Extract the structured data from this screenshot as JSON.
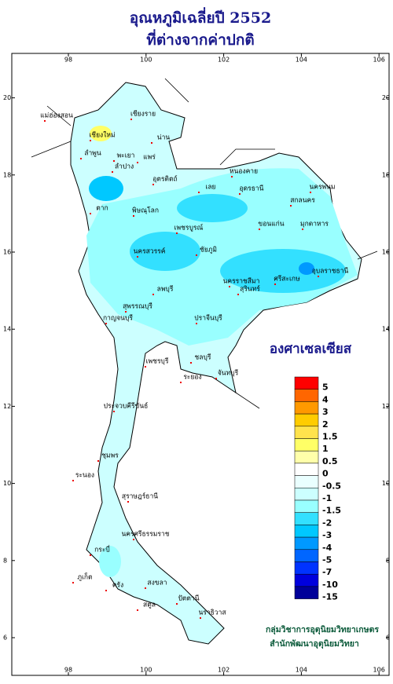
{
  "title": [
    "อุณหภูมิเฉลี่ยปี 2552",
    "ที่ต่างจากค่าปกติ"
  ],
  "map": {
    "lon_ticks": [
      98,
      100,
      102,
      104,
      106
    ],
    "lat_ticks": [
      6,
      8,
      10,
      12,
      14,
      16,
      18,
      20
    ],
    "places": [
      "เชียงราย",
      "แม่ฮ่องสอน",
      "เชียงใหม่",
      "พะเยา",
      "น่าน",
      "ลำพูน",
      "ลำปาง",
      "แพร่",
      "อุตรดิตถ์",
      "ตาก",
      "เลย",
      "หนองคาย",
      "อุดรธานี",
      "สกลนคร",
      "นครพนม",
      "มุกดาหาร",
      "ขอนแก่น",
      "พิษณุโลก",
      "เพชรบูรณ์",
      "นครสวรรค์",
      "ชัยภูมิ",
      "อุบลราชธานี",
      "ศรีสะเกษ",
      "สุรินทร์",
      "นครราชสีมา",
      "ลพบุรี",
      "สุพรรณบุรี",
      "กาญจนบุรี",
      "ปราจีนบุรี",
      "ชลบุรี",
      "ระยอง",
      "จันทบุรี",
      "เพชรบุรี",
      "ประจวบคีรีขันธ์",
      "ชุมพร",
      "ระนอง",
      "สุราษฎร์ธานี",
      "นครศรีธรรมราช",
      "ภูเก็ต",
      "กระบี่",
      "ตรัง",
      "สงขลา",
      "สตูล",
      "ปัตตานี",
      "นราธิวาส"
    ]
  },
  "legend": {
    "unit": "องศาเซลเซียส",
    "items": [
      {
        "label": "5",
        "color": "#ff0000"
      },
      {
        "label": "4",
        "color": "#ff6600"
      },
      {
        "label": "3",
        "color": "#ff9900"
      },
      {
        "label": "2",
        "color": "#ffcc00"
      },
      {
        "label": "1.5",
        "color": "#ffe34d"
      },
      {
        "label": "1",
        "color": "#ffff66"
      },
      {
        "label": "0.5",
        "color": "#ffffaa"
      },
      {
        "label": "0",
        "color": "#ffffff"
      },
      {
        "label": "-0.5",
        "color": "#eaffff"
      },
      {
        "label": "-1",
        "color": "#ccffff"
      },
      {
        "label": "-1.5",
        "color": "#99ffff"
      },
      {
        "label": "-2",
        "color": "#33e0ff"
      },
      {
        "label": "-3",
        "color": "#00c8ff"
      },
      {
        "label": "-4",
        "color": "#0099ff"
      },
      {
        "label": "-5",
        "color": "#0066ff"
      },
      {
        "label": "-7",
        "color": "#0033ff"
      },
      {
        "label": "-10",
        "color": "#0000dd"
      },
      {
        "label": "-15",
        "color": "#000099"
      }
    ]
  },
  "credits": [
    "กลุ่มวิชาการอุตุนิยมวิทยาเกษตร",
    "สำนักพัฒนาอุตุนิยมวิทยา"
  ]
}
